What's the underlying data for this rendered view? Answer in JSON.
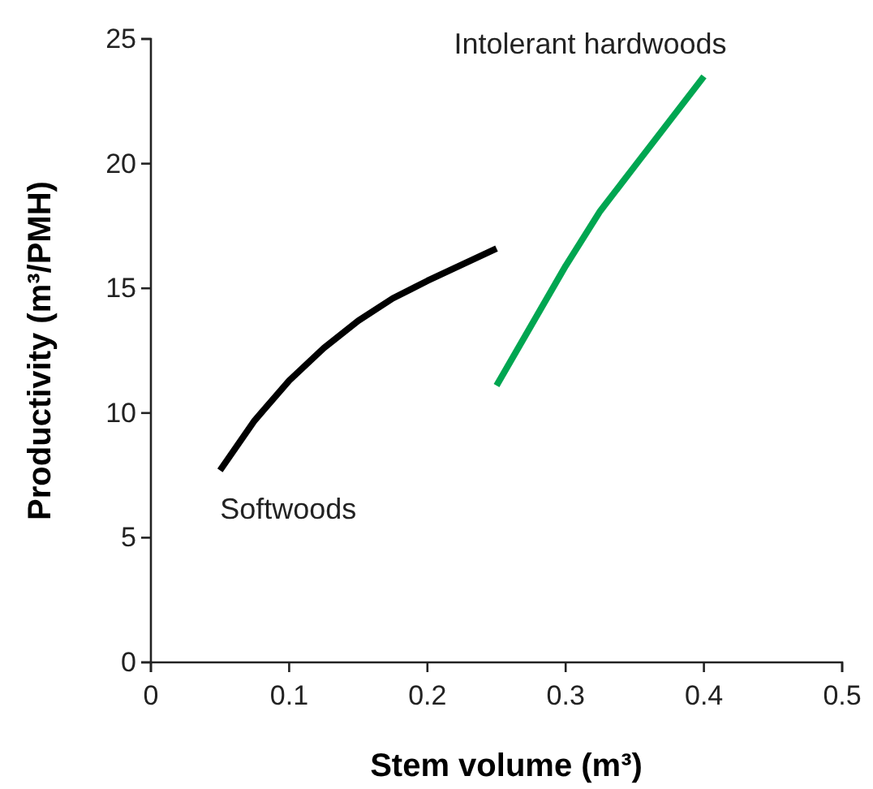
{
  "chart_data": {
    "type": "line",
    "xlabel": "Stem volume (m³)",
    "ylabel": "Productivity (m³/PMH)",
    "xlim": [
      0,
      0.5
    ],
    "xticks": [
      {
        "value": 0,
        "label": "0"
      },
      0.1,
      0.2,
      0.3,
      0.4,
      0.5
    ],
    "ylim": [
      0,
      25
    ],
    "yticks": [
      0,
      5,
      10,
      15,
      20,
      25
    ],
    "grid": false,
    "legend": false,
    "marker": "none",
    "line_style": "solid",
    "series": [
      {
        "name": "Softwoods",
        "color": "#000000",
        "x": [
          0.05,
          0.075,
          0.1,
          0.125,
          0.15,
          0.175,
          0.2,
          0.25
        ],
        "values": [
          7.7,
          9.7,
          11.3,
          12.6,
          13.7,
          14.6,
          15.3,
          16.6
        ]
      },
      {
        "name": "Intolerant hardwoods",
        "color": "#00a651",
        "x": [
          0.25,
          0.275,
          0.3,
          0.325,
          0.35,
          0.375,
          0.4
        ],
        "values": [
          11.1,
          13.5,
          15.9,
          18.1,
          19.9,
          21.7,
          23.5
        ]
      }
    ]
  }
}
